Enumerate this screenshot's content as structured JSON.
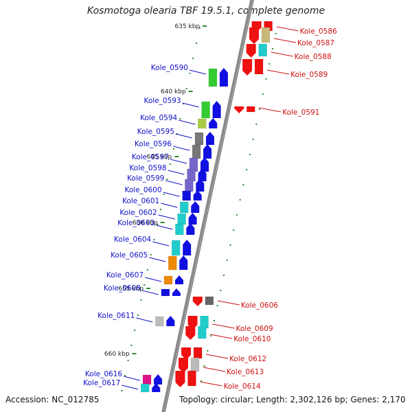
{
  "title": "Kosmotoga olearia TBF 19.5.1, complete genome",
  "accession": "Accession: NC_012785",
  "topology": "Topology: circular; Length: 2,302,126 bp; Genes: 2,170",
  "colors": {
    "axis": "#8a8a8a",
    "axis_dark": "#5a5a5a",
    "tick": "#2e8b2e",
    "left_label": "#1010c8",
    "right_label": "#cc1010",
    "forward_arrow": "#1010e0",
    "reverse_arrow": "#ee1111"
  },
  "kbp_ticks": [
    {
      "label": "635 kbp"
    },
    {
      "label": "640 kbp"
    },
    {
      "label": "645 kbp"
    },
    {
      "label": "650 kbp"
    },
    {
      "label": "655 kbp"
    },
    {
      "label": "660 kbp"
    }
  ],
  "left_genes": [
    {
      "name": "Kole_0590",
      "cog": "#33cc33",
      "strand": "+"
    },
    {
      "name": "Kole_0593",
      "cog": "#33cc33",
      "strand": "+"
    },
    {
      "name": "Kole_0594",
      "cog": "#aacc44",
      "strand": "+"
    },
    {
      "name": "Kole_0595",
      "cog": "#777777",
      "strand": "+"
    },
    {
      "name": "Kole_0596",
      "cog": "#777777",
      "strand": "+"
    },
    {
      "name": "Kole_0597",
      "cog": "#7766cc",
      "strand": "+"
    },
    {
      "name": "Kole_0598",
      "cog": "#7766cc",
      "strand": "+"
    },
    {
      "name": "Kole_0599",
      "cog": "#7766cc",
      "strand": "+"
    },
    {
      "name": "Kole_0600",
      "cog": "#1111dd",
      "strand": "+"
    },
    {
      "name": "Kole_0601",
      "cog": "#22cccc",
      "strand": "+"
    },
    {
      "name": "Kole_0602",
      "cog": "#22cccc",
      "strand": "+"
    },
    {
      "name": "Kole_0603",
      "cog": "#22cccc",
      "strand": "+"
    },
    {
      "name": "Kole_0604",
      "cog": "#22cccc",
      "strand": "+"
    },
    {
      "name": "Kole_0605",
      "cog": "#ee8800",
      "strand": "+"
    },
    {
      "name": "Kole_0607",
      "cog": "#ee8800",
      "strand": "+"
    },
    {
      "name": "Kole_0608",
      "cog": "#1111dd",
      "strand": "+"
    },
    {
      "name": "Kole_0611",
      "cog": "#bbbbbb",
      "strand": "+"
    },
    {
      "name": "Kole_0616",
      "cog": "#dd1188",
      "strand": "+"
    },
    {
      "name": "Kole_0617",
      "cog": "#22cccc",
      "strand": "+"
    }
  ],
  "right_genes": [
    {
      "name": "Kole_0586",
      "cog": "#ee1111",
      "strand": "-"
    },
    {
      "name": "Kole_0587",
      "cog": "#c8b87a",
      "strand": "-"
    },
    {
      "name": "Kole_0588",
      "cog": "#22cccc",
      "strand": "-"
    },
    {
      "name": "Kole_0589",
      "cog": "#ee1111",
      "strand": "-"
    },
    {
      "name": "Kole_0591",
      "cog": "#ee1111",
      "strand": "-"
    },
    {
      "name": "Kole_0606",
      "cog": "#666666",
      "strand": "-"
    },
    {
      "name": "Kole_0609",
      "cog": "#22cccc",
      "strand": "-"
    },
    {
      "name": "Kole_0610",
      "cog": "#22cccc",
      "strand": "-"
    },
    {
      "name": "Kole_0612",
      "cog": "#ee1111",
      "strand": "-"
    },
    {
      "name": "Kole_0613",
      "cog": "#bbbbbb",
      "strand": "-"
    },
    {
      "name": "Kole_0614",
      "cog": "#ee1111",
      "strand": "-"
    }
  ]
}
